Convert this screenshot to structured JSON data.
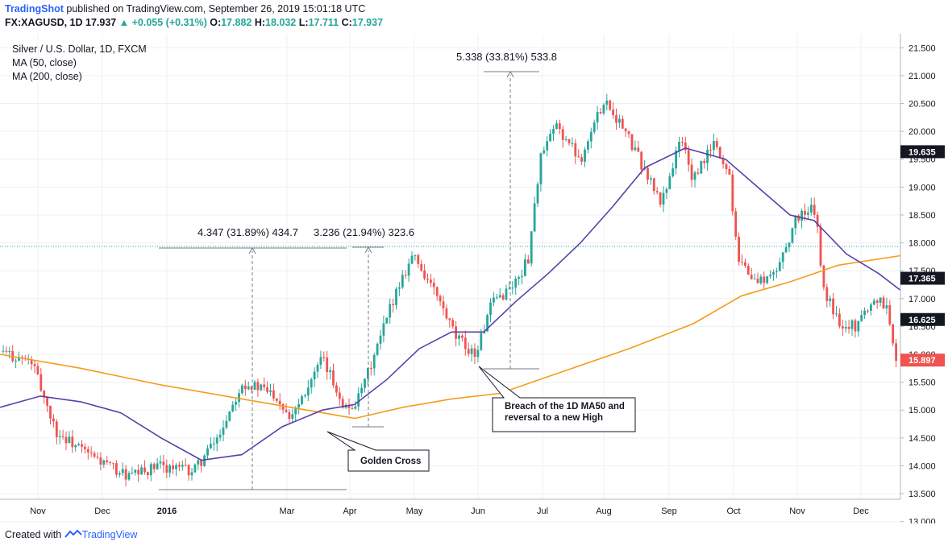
{
  "header": {
    "brand": "TradingShot",
    "published": "published on TradingView.com, September 26, 2019 15:01:18 UTC",
    "symbol": "FX:XAGUSD, 1D",
    "price": "17.937",
    "change": "+0.055 (+0.31%)",
    "o_label": "O:",
    "o_val": "17.882",
    "h_label": "H:",
    "h_val": "18.032",
    "l_label": "L:",
    "l_val": "17.711",
    "c_label": "C:",
    "c_val": "17.937"
  },
  "legend": {
    "title": "Silver / U.S. Dollar, 1D, FXCM",
    "ma50": "MA (50, close)",
    "ma200": "MA (200, close)"
  },
  "footer": {
    "created": "Created with",
    "tv": "TradingView"
  },
  "colors": {
    "up": "#26a69a",
    "down": "#ef5350",
    "ma50": "#5b3ea8",
    "ma200": "#f59c1a",
    "grid": "#eef0f3",
    "text": "#131722"
  },
  "chart_data": {
    "type": "candlestick",
    "y_range": [
      13.4,
      21.75
    ],
    "y_ticks": [
      "21.500",
      "21.000",
      "20.500",
      "20.000",
      "19.500",
      "19.000",
      "18.500",
      "18.000",
      "17.500",
      "17.000",
      "16.500",
      "16.000",
      "15.500",
      "15.000",
      "14.500",
      "14.000",
      "13.500",
      "13.000"
    ],
    "x_ticks": [
      "Nov",
      "Dec",
      "2016",
      "Mar",
      "Apr",
      "May",
      "Jun",
      "Jul",
      "Aug",
      "Sep",
      "Oct",
      "Nov",
      "Dec"
    ],
    "price_labels": [
      {
        "value": "19.635",
        "style": "black"
      },
      {
        "value": "17.365",
        "style": "black"
      },
      {
        "value": "16.625",
        "style": "black"
      },
      {
        "value": "15.897",
        "style": "red"
      }
    ],
    "current_price_line": 17.937,
    "ma50_points": [
      [
        0,
        15.05
      ],
      [
        50,
        15.25
      ],
      [
        100,
        15.15
      ],
      [
        150,
        14.95
      ],
      [
        200,
        14.5
      ],
      [
        250,
        14.1
      ],
      [
        300,
        14.2
      ],
      [
        350,
        14.7
      ],
      [
        400,
        15.0
      ],
      [
        440,
        15.1
      ],
      [
        480,
        15.55
      ],
      [
        520,
        16.1
      ],
      [
        560,
        16.4
      ],
      [
        600,
        16.4
      ],
      [
        640,
        16.95
      ],
      [
        680,
        17.45
      ],
      [
        720,
        18.0
      ],
      [
        760,
        18.65
      ],
      [
        800,
        19.35
      ],
      [
        850,
        19.7
      ],
      [
        900,
        19.5
      ],
      [
        940,
        19.0
      ],
      [
        980,
        18.5
      ],
      [
        1010,
        18.4
      ],
      [
        1050,
        17.8
      ],
      [
        1090,
        17.45
      ],
      [
        1117,
        17.15
      ]
    ],
    "ma200_points": [
      [
        0,
        16.0
      ],
      [
        100,
        15.75
      ],
      [
        200,
        15.45
      ],
      [
        300,
        15.2
      ],
      [
        380,
        15.0
      ],
      [
        440,
        14.85
      ],
      [
        500,
        15.05
      ],
      [
        560,
        15.2
      ],
      [
        620,
        15.3
      ],
      [
        700,
        15.7
      ],
      [
        780,
        16.1
      ],
      [
        860,
        16.55
      ],
      [
        920,
        17.05
      ],
      [
        980,
        17.3
      ],
      [
        1040,
        17.6
      ],
      [
        1117,
        17.77
      ]
    ],
    "annotations": [
      {
        "text": "4.347 (31.89%) 434.7"
      },
      {
        "text": "3.236 (21.94%) 323.6"
      },
      {
        "text": "5.338 (33.81%) 533.8"
      },
      {
        "text": "Golden Cross"
      },
      {
        "text": "Breach of the 1D MA50 and reversal to a new High"
      }
    ]
  }
}
